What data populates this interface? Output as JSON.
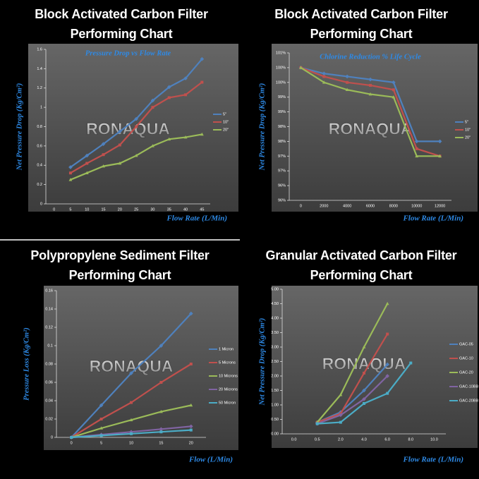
{
  "chart_data": [
    {
      "type": "line",
      "title": "Block Activated Carbon Filter Performing Chart",
      "subtitle": "Pressure Drop vs Flow Rate",
      "watermark": "RONAQUA",
      "y_label": "Net Pressure Drop (Kg/Cm²)",
      "x_label": "Flow Rate (L/Min)",
      "categories": [
        "0",
        "5",
        "10",
        "15",
        "20",
        "25",
        "30",
        "35",
        "40",
        "45"
      ],
      "ylim": [
        0,
        1.6
      ],
      "yticks": [
        0,
        0.2,
        0.4,
        0.6,
        0.8,
        1,
        1.2,
        1.4,
        1.6
      ],
      "grid": false,
      "legend": "right",
      "series": [
        {
          "name": "5\"",
          "color": "#4f81bd",
          "values": [
            null,
            0.38,
            0.5,
            0.62,
            0.75,
            0.88,
            1.07,
            1.21,
            1.3,
            1.5
          ]
        },
        {
          "name": "10\"",
          "color": "#c0504d",
          "values": [
            null,
            0.32,
            0.42,
            0.51,
            0.61,
            0.8,
            1.0,
            1.1,
            1.13,
            1.26
          ]
        },
        {
          "name": "20\"",
          "color": "#9bbb59",
          "values": [
            null,
            0.25,
            0.32,
            0.39,
            0.42,
            0.5,
            0.6,
            0.67,
            0.69,
            0.72
          ]
        }
      ]
    },
    {
      "type": "line",
      "title": "Block Activated Carbon Filter Performing Chart",
      "subtitle": "Chlorine Reduction % Life Cycle",
      "watermark": "RONAQUA",
      "y_label": "Net Pressure Drop (Kg/Cm²)",
      "x_label": "Flow Rate (L/Min)",
      "categories": [
        "0",
        "2000",
        "4000",
        "6000",
        "8000",
        "10000",
        "12000"
      ],
      "ylim": [
        95.5,
        100.5
      ],
      "yticks": [
        {
          "value": 95.5,
          "label": "96%"
        },
        {
          "value": 96,
          "label": "96%"
        },
        {
          "value": 96.5,
          "label": "97%"
        },
        {
          "value": 97,
          "label": "97%"
        },
        {
          "value": 97.5,
          "label": "98%"
        },
        {
          "value": 98,
          "label": "98%"
        },
        {
          "value": 98.5,
          "label": "99%"
        },
        {
          "value": 99,
          "label": "99%"
        },
        {
          "value": 99.5,
          "label": "100%"
        },
        {
          "value": 100,
          "label": "100%"
        },
        {
          "value": 100.5,
          "label": "101%"
        }
      ],
      "grid": false,
      "legend": "right",
      "series": [
        {
          "name": "5\"",
          "color": "#4f81bd",
          "values": [
            100,
            99.8,
            99.7,
            99.6,
            99.5,
            97.5,
            97.5
          ]
        },
        {
          "name": "10\"",
          "color": "#c0504d",
          "values": [
            100,
            99.7,
            99.5,
            99.4,
            99.25,
            97.25,
            97.0
          ]
        },
        {
          "name": "20\"",
          "color": "#9bbb59",
          "values": [
            100,
            99.5,
            99.25,
            99.1,
            99.0,
            97.0,
            97.0
          ]
        }
      ]
    },
    {
      "type": "line",
      "title": "Polypropylene Sediment Filter Performing Chart",
      "watermark": "RONAQUA",
      "y_label": "Pressure Loss (Kg/Cm²)",
      "x_label": "Flow (L/Min)",
      "categories": [
        "0",
        "5",
        "10",
        "15",
        "20"
      ],
      "ylim": [
        0,
        0.16
      ],
      "yticks": [
        0,
        0.02,
        0.04,
        0.06,
        0.08,
        0.1,
        0.12,
        0.14,
        0.16
      ],
      "grid": false,
      "legend": "right",
      "series": [
        {
          "name": "1 Micron",
          "color": "#4f81bd",
          "values": [
            0,
            0.035,
            0.07,
            0.1,
            0.135
          ]
        },
        {
          "name": "5 Microns",
          "color": "#c0504d",
          "values": [
            0,
            0.02,
            0.038,
            0.06,
            0.08
          ]
        },
        {
          "name": "10 Microns",
          "color": "#9bbb59",
          "values": [
            0,
            0.01,
            0.019,
            0.028,
            0.035
          ]
        },
        {
          "name": "20 Microns",
          "color": "#8064a2",
          "values": [
            0,
            0.003,
            0.006,
            0.009,
            0.012
          ]
        },
        {
          "name": "50 Micron",
          "color": "#4bacc6",
          "values": [
            0,
            0.002,
            0.004,
            0.006,
            0.008
          ]
        }
      ]
    },
    {
      "type": "line",
      "title": "Granular Activated Carbon Filter Performing Chart",
      "watermark": "RONAQUA",
      "y_label": "Net Pressure Drop (Kg/Cm²)",
      "x_label": "Flow Rate (L/Min)",
      "categories": [
        "0.0",
        "0.5",
        "2.0",
        "4.0",
        "6.0",
        "8.0",
        "10.0"
      ],
      "ylim": [
        0,
        5
      ],
      "yticks": [
        {
          "value": 0,
          "label": "0.00"
        },
        {
          "value": 0.5,
          "label": "0.50"
        },
        {
          "value": 1,
          "label": "1.00"
        },
        {
          "value": 1.5,
          "label": "1.50"
        },
        {
          "value": 2,
          "label": "2.00"
        },
        {
          "value": 2.5,
          "label": "2.50"
        },
        {
          "value": 3,
          "label": "3.00"
        },
        {
          "value": 3.5,
          "label": "3.50"
        },
        {
          "value": 4,
          "label": "4.00"
        },
        {
          "value": 4.5,
          "label": "4.50"
        },
        {
          "value": 5,
          "label": "5.00"
        }
      ],
      "grid": false,
      "legend": "right",
      "series": [
        {
          "name": "GAC-05",
          "color": "#4f81bd",
          "values": [
            null,
            0.4,
            0.75,
            1.5,
            2.4,
            null,
            null
          ]
        },
        {
          "name": "GAC-10",
          "color": "#c0504d",
          "values": [
            null,
            0.4,
            0.7,
            2.1,
            3.45,
            null,
            null
          ]
        },
        {
          "name": "GAC-20",
          "color": "#9bbb59",
          "values": [
            null,
            0.4,
            1.35,
            3.0,
            4.5,
            null,
            null
          ]
        },
        {
          "name": "GAC-10BB",
          "color": "#8064a2",
          "values": [
            null,
            0.35,
            0.65,
            1.2,
            2.0,
            null,
            null
          ]
        },
        {
          "name": "GAC-20BB",
          "color": "#4bacc6",
          "values": [
            null,
            0.35,
            0.4,
            1.05,
            1.4,
            2.45,
            null
          ]
        }
      ]
    }
  ]
}
